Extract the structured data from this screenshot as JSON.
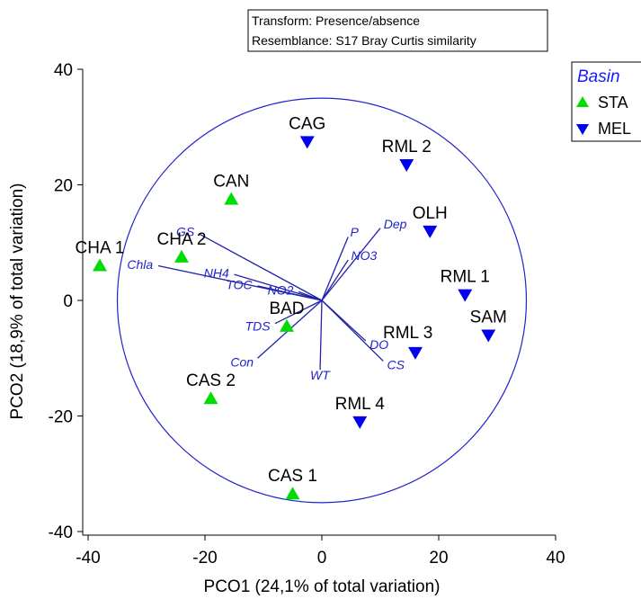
{
  "chart_data": {
    "type": "scatter",
    "annotation_lines": [
      "Transform: Presence/absence",
      "Resemblance: S17 Bray Curtis similarity"
    ],
    "xlabel": "PCO1 (24,1% of total variation)",
    "ylabel": "PCO2 (18,9% of total variation)",
    "xlim": [
      -40,
      40
    ],
    "ylim": [
      -40,
      40
    ],
    "xticks": [
      -40,
      -20,
      0,
      20,
      40
    ],
    "yticks": [
      -40,
      -20,
      0,
      20,
      40
    ],
    "xtick_labels": [
      "-40",
      "-20",
      "0",
      "20",
      "40"
    ],
    "ytick_labels": [
      "-40",
      "-20",
      "0",
      "20",
      "40"
    ],
    "legend": {
      "title": "Basin",
      "placement": "top-right",
      "entries": [
        {
          "label": "STA",
          "marker": "triangle-up",
          "color": "#00dd00"
        },
        {
          "label": "MEL",
          "marker": "triangle-down",
          "color": "#0000ee"
        }
      ]
    },
    "correlation_circle_radius": 35,
    "points": [
      {
        "label": "CHA 1",
        "group": "STA",
        "x": -38,
        "y": 6,
        "label_pos": "top"
      },
      {
        "label": "CHA 2",
        "group": "STA",
        "x": -24,
        "y": 7.5,
        "label_pos": "top"
      },
      {
        "label": "CAN",
        "group": "STA",
        "x": -15.5,
        "y": 17.5,
        "label_pos": "top"
      },
      {
        "label": "BAD",
        "group": "STA",
        "x": -6,
        "y": -4.5,
        "label_pos": "top"
      },
      {
        "label": "CAS 2",
        "group": "STA",
        "x": -19,
        "y": -17,
        "label_pos": "top"
      },
      {
        "label": "CAS 1",
        "group": "STA",
        "x": -5,
        "y": -33.5,
        "label_pos": "top"
      },
      {
        "label": "CAG",
        "group": "MEL",
        "x": -2.5,
        "y": 27.5,
        "label_pos": "top"
      },
      {
        "label": "RML 2",
        "group": "MEL",
        "x": 14.5,
        "y": 23.5,
        "label_pos": "top"
      },
      {
        "label": "OLH",
        "group": "MEL",
        "x": 18.5,
        "y": 12,
        "label_pos": "top"
      },
      {
        "label": "RML 1",
        "group": "MEL",
        "x": 24.5,
        "y": 1,
        "label_pos": "top"
      },
      {
        "label": "SAM",
        "group": "MEL",
        "x": 28.5,
        "y": -6,
        "label_pos": "top"
      },
      {
        "label": "RML 3",
        "group": "MEL",
        "x": 16,
        "y": -9,
        "label_pos": "right"
      },
      {
        "label": "RML 4",
        "group": "MEL",
        "x": 6.5,
        "y": -21,
        "label_pos": "top"
      }
    ],
    "vectors": [
      {
        "label": "GS",
        "x": -21,
        "y": 11.5
      },
      {
        "label": "Chla",
        "x": -28,
        "y": 6
      },
      {
        "label": "NH4",
        "x": -15,
        "y": 4.5
      },
      {
        "label": "TOC",
        "x": -11,
        "y": 2.5
      },
      {
        "label": "NO2",
        "x": -4,
        "y": 1.5
      },
      {
        "label": "TDS",
        "x": -8,
        "y": -4
      },
      {
        "label": "Con",
        "x": -11,
        "y": -10
      },
      {
        "label": "WT",
        "x": -0.3,
        "y": -12
      },
      {
        "label": "P",
        "x": 4.5,
        "y": 11
      },
      {
        "label": "Dep",
        "x": 10,
        "y": 12.5
      },
      {
        "label": "NO3",
        "x": 4.5,
        "y": 7
      },
      {
        "label": "DO",
        "x": 7.5,
        "y": -7
      },
      {
        "label": "CS",
        "x": 10.5,
        "y": -10.5
      }
    ]
  }
}
